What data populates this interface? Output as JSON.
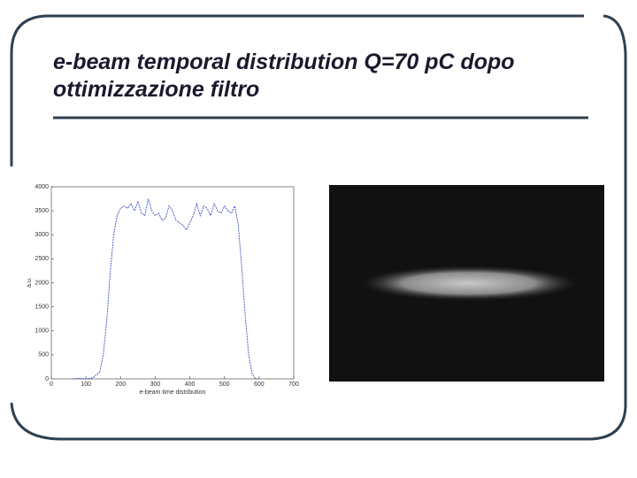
{
  "slide_title": "e-beam temporal distribution Q=70 pC dopo ottimizzazione filtro",
  "chart_data": {
    "type": "line",
    "xlabel": "e-beam time distribution",
    "ylabel": "a.u.",
    "xlim": [
      0,
      700
    ],
    "xticks": [
      0,
      100,
      200,
      300,
      400,
      500,
      600,
      700
    ],
    "ylim": [
      0,
      4000
    ],
    "yticks": [
      0,
      500,
      1000,
      1500,
      2000,
      2500,
      3000,
      3500,
      4000
    ],
    "x": [
      60,
      80,
      100,
      120,
      140,
      150,
      160,
      170,
      180,
      190,
      200,
      210,
      220,
      230,
      240,
      250,
      260,
      270,
      280,
      290,
      300,
      310,
      320,
      330,
      340,
      350,
      360,
      370,
      380,
      390,
      400,
      410,
      420,
      430,
      440,
      450,
      460,
      470,
      480,
      490,
      500,
      510,
      520,
      530,
      540,
      550,
      560,
      570,
      580,
      590,
      600
    ],
    "series": [
      {
        "color": "#3b4fc0",
        "values": [
          0,
          10,
          0,
          20,
          150,
          500,
          1200,
          2200,
          3000,
          3400,
          3550,
          3600,
          3550,
          3650,
          3500,
          3700,
          3450,
          3400,
          3750,
          3500,
          3400,
          3450,
          3300,
          3350,
          3600,
          3500,
          3300,
          3250,
          3200,
          3100,
          3250,
          3400,
          3650,
          3400,
          3600,
          3550,
          3400,
          3650,
          3500,
          3450,
          3600,
          3500,
          3450,
          3600,
          3200,
          2300,
          1300,
          500,
          100,
          0,
          0
        ]
      }
    ]
  }
}
